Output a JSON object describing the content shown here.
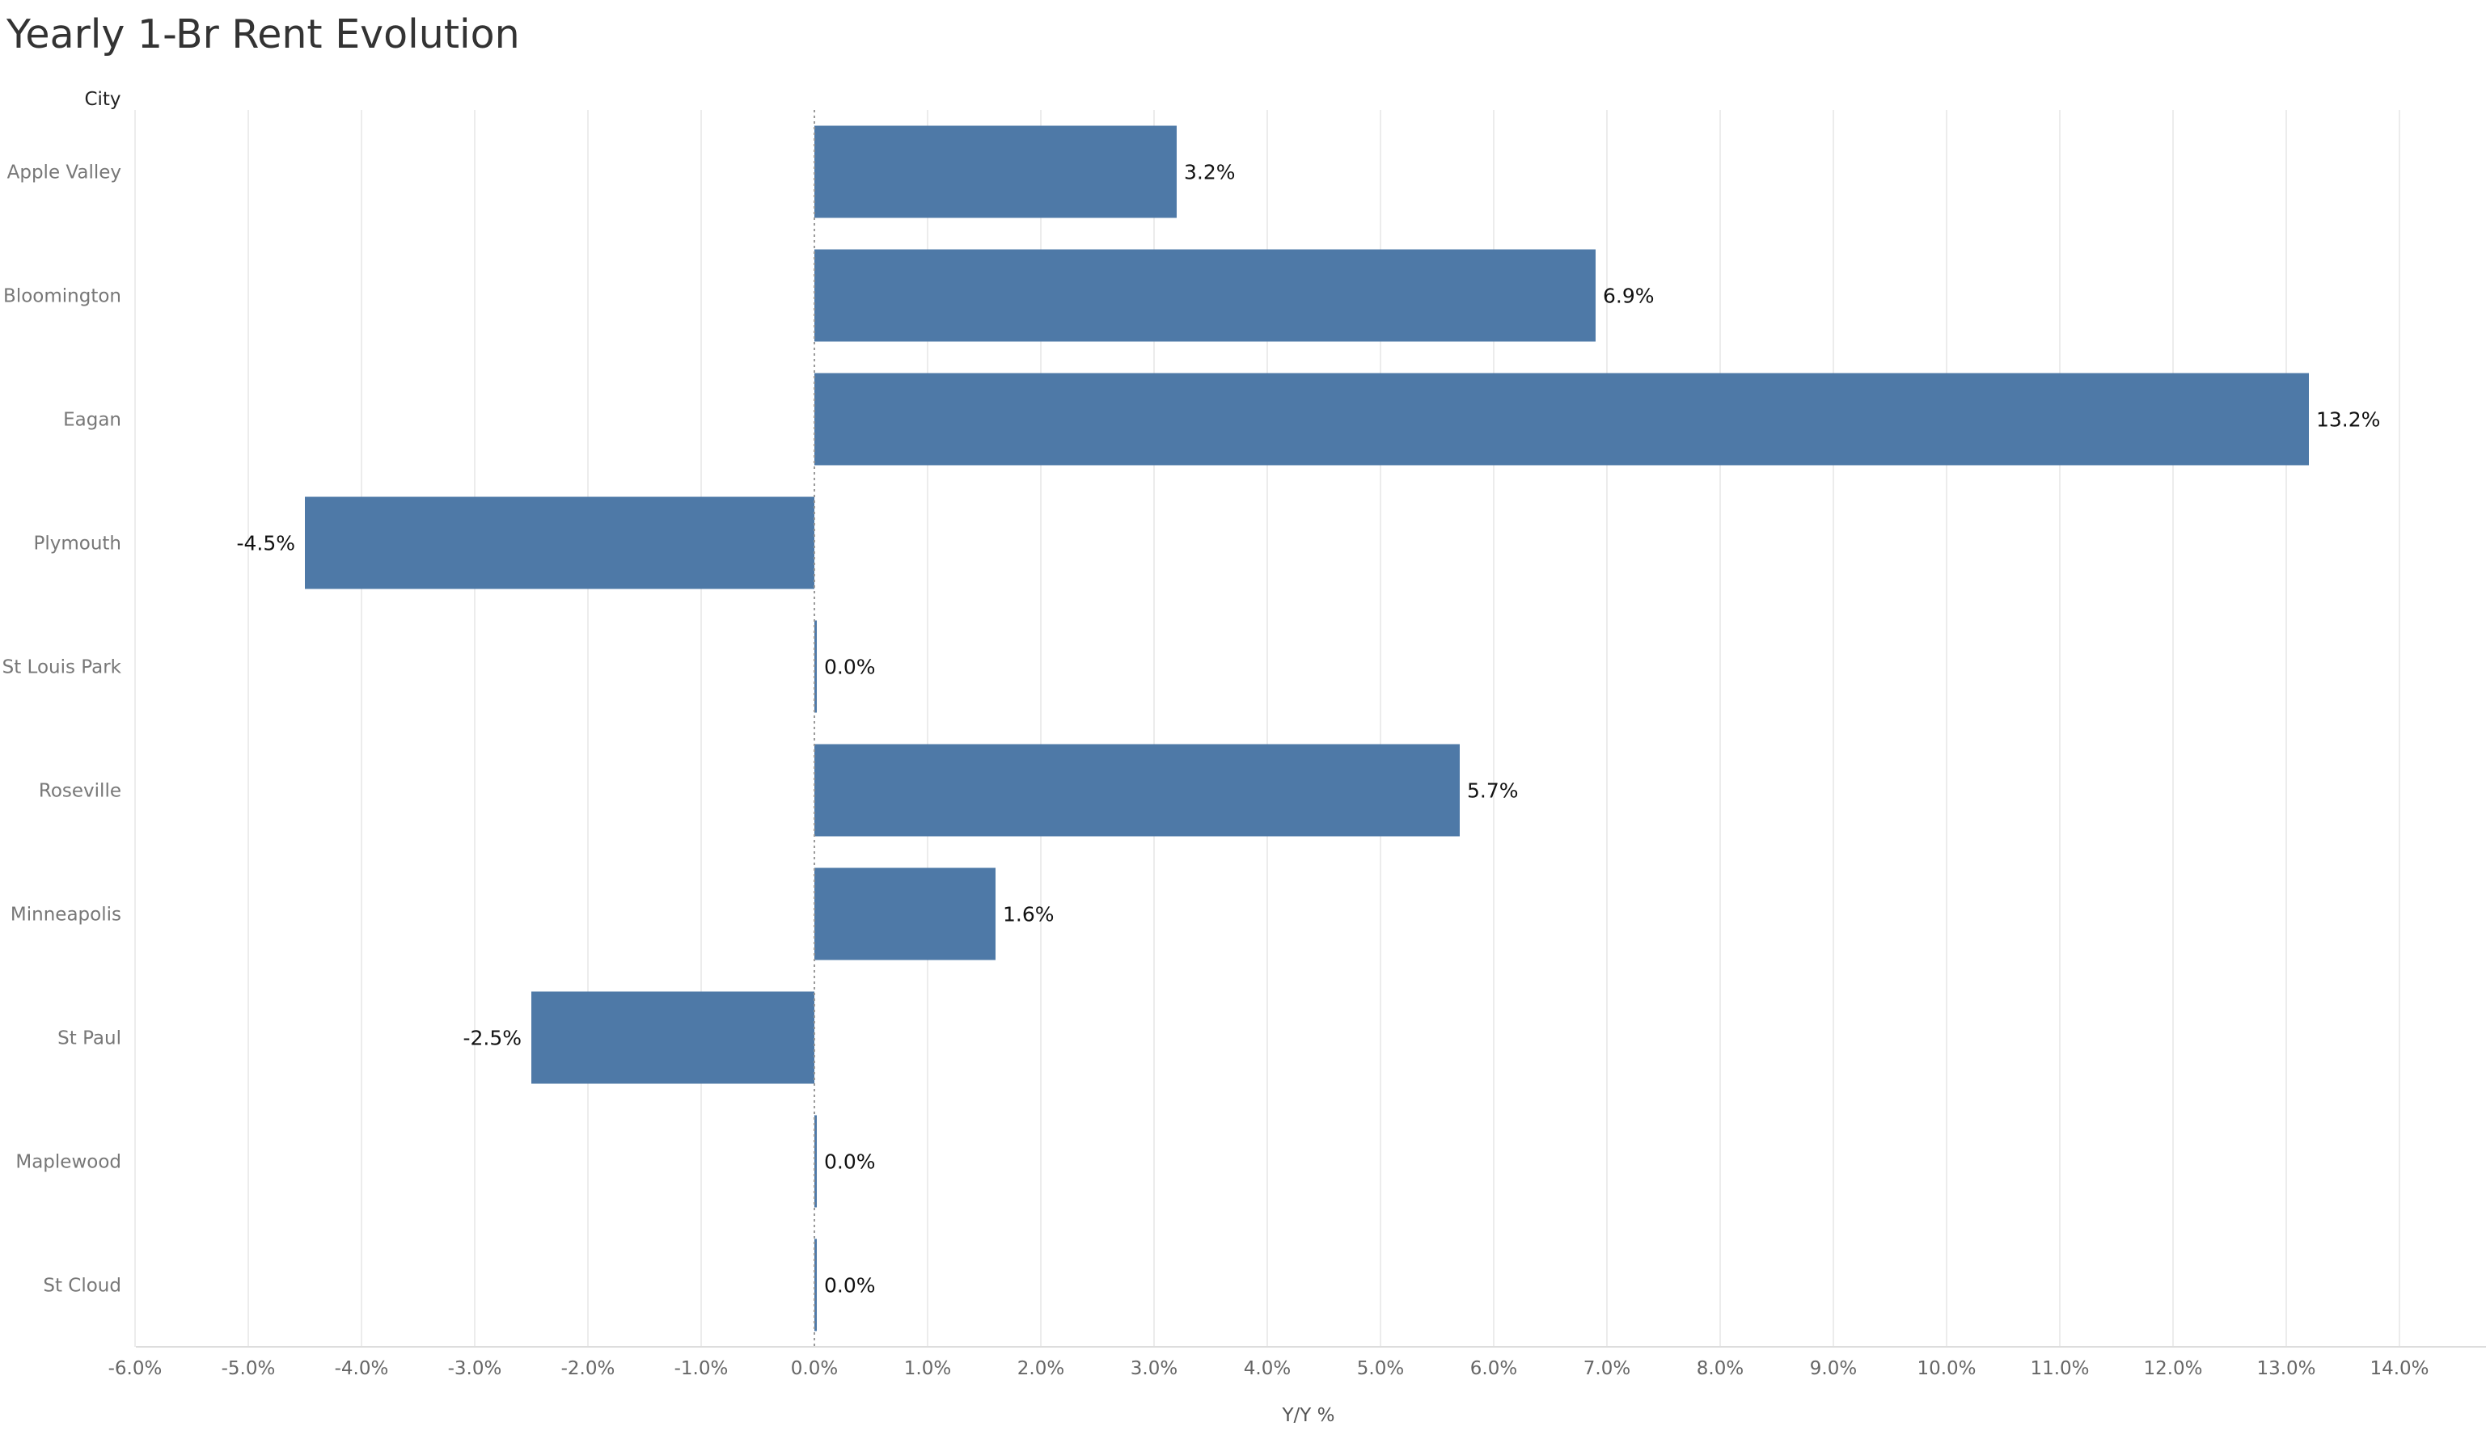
{
  "chart_data": {
    "type": "bar",
    "orientation": "horizontal",
    "title": "Yearly 1-Br Rent Evolution",
    "category_header": "City",
    "xlabel": "Y/Y %",
    "ylabel": "",
    "categories": [
      "Apple Valley",
      "Bloomington",
      "Eagan",
      "Plymouth",
      "St Louis Park",
      "Roseville",
      "Minneapolis",
      "St Paul",
      "Maplewood",
      "St Cloud"
    ],
    "values": [
      3.2,
      6.9,
      13.2,
      -4.5,
      0.0,
      5.7,
      1.6,
      -2.5,
      0.0,
      0.0
    ],
    "data_labels": [
      "3.2%",
      "6.9%",
      "13.2%",
      "-4.5%",
      "0.0%",
      "5.7%",
      "1.6%",
      "-2.5%",
      "0.0%",
      "0.0%"
    ],
    "xlim": [
      -6,
      14
    ],
    "xticks": [
      -6,
      -5,
      -4,
      -3,
      -2,
      -1,
      0,
      1,
      2,
      3,
      4,
      5,
      6,
      7,
      8,
      9,
      10,
      11,
      12,
      13,
      14
    ],
    "xtick_labels": [
      "-6.0%",
      "-5.0%",
      "-4.0%",
      "-3.0%",
      "-2.0%",
      "-1.0%",
      "0.0%",
      "1.0%",
      "2.0%",
      "3.0%",
      "4.0%",
      "5.0%",
      "6.0%",
      "7.0%",
      "8.0%",
      "9.0%",
      "10.0%",
      "11.0%",
      "12.0%",
      "13.0%",
      "14.0%"
    ],
    "grid": "vertical",
    "bar_color": "#4e79a7",
    "zero_line_style": "dotted"
  }
}
